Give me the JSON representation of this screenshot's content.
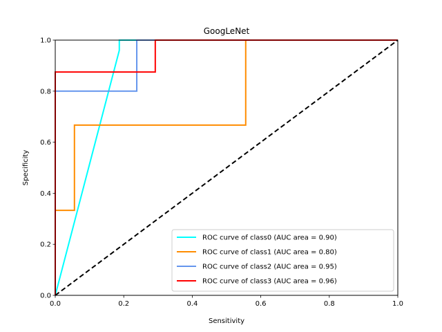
{
  "chart_data": {
    "type": "line",
    "title": "GoogLeNet",
    "xlabel": "Sensitivity",
    "ylabel": "Specificity",
    "xlim": [
      0,
      1
    ],
    "ylim": [
      0,
      1
    ],
    "xticks": [
      "0.0",
      "0.2",
      "0.4",
      "0.6",
      "0.8",
      "1.0"
    ],
    "yticks": [
      "0.0",
      "0.2",
      "0.4",
      "0.6",
      "0.8",
      "1.0"
    ],
    "grid": false,
    "legend_position": "lower-right",
    "series": [
      {
        "name": "ROC curve of class0 (AUC area = 0.90)",
        "color": "#00ffff",
        "x": [
          0,
          0.187,
          0.187,
          1
        ],
        "y": [
          0,
          0.96,
          1,
          1
        ]
      },
      {
        "name": "ROC curve of class1 (AUC area = 0.80)",
        "color": "#ff8c00",
        "x": [
          0,
          0,
          0.056,
          0.056,
          0.556,
          0.556,
          1
        ],
        "y": [
          0,
          0.333,
          0.333,
          0.667,
          0.667,
          1,
          1
        ]
      },
      {
        "name": "ROC curve of class2 (AUC area = 0.95)",
        "color": "#6495ed",
        "x": [
          0,
          0,
          0.238,
          0.238,
          1
        ],
        "y": [
          0,
          0.8,
          0.8,
          1,
          1
        ]
      },
      {
        "name": "ROC curve of class3 (AUC area = 0.96)",
        "color": "#ff0000",
        "x": [
          0,
          0,
          0.292,
          0.292,
          1
        ],
        "y": [
          0,
          0.875,
          0.875,
          1,
          1
        ]
      }
    ],
    "reference_line": {
      "color": "#000000",
      "style": "dashed",
      "x": [
        0,
        1
      ],
      "y": [
        0,
        1
      ]
    }
  }
}
